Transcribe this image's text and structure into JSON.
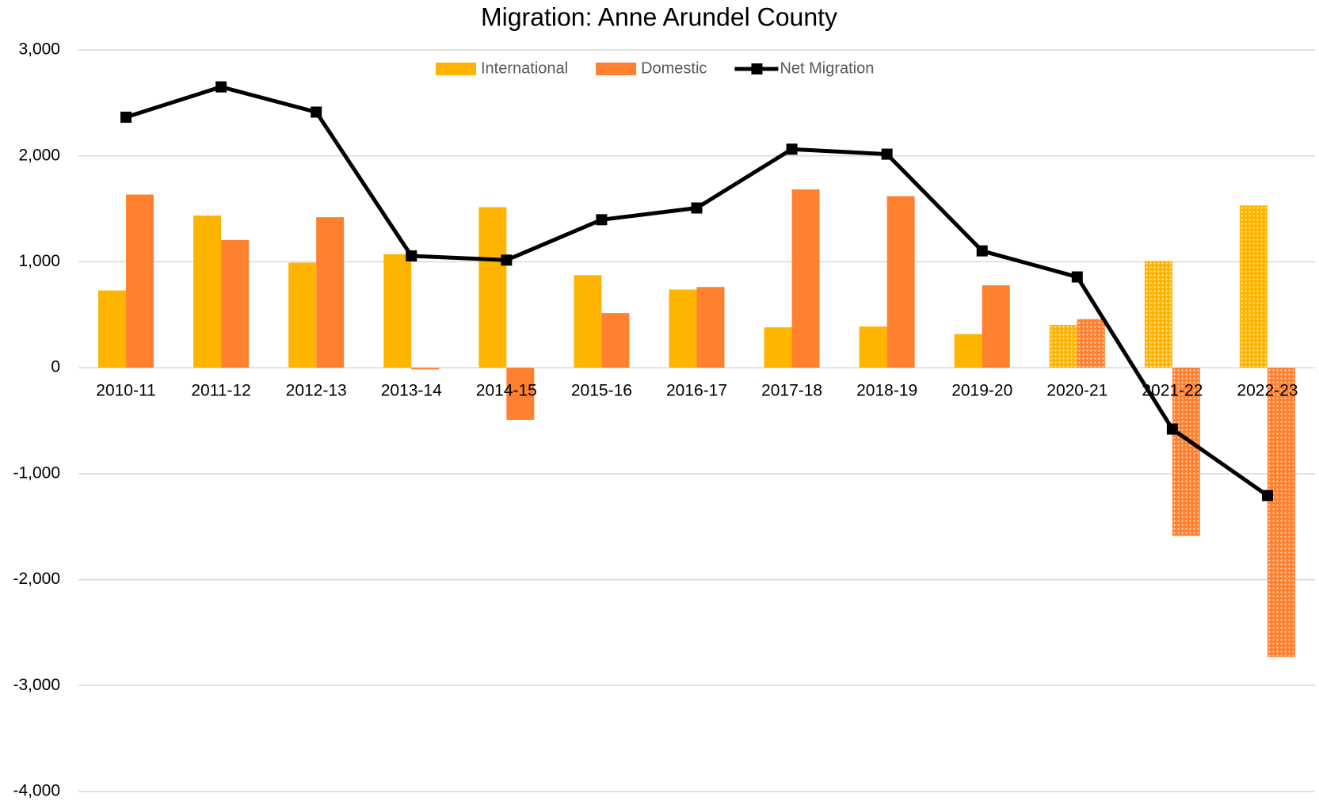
{
  "chart_data": {
    "type": "bar-line",
    "title": "Migration: Anne Arundel County",
    "categories": [
      "2010-11",
      "2011-12",
      "2012-13",
      "2013-14",
      "2014-15",
      "2015-16",
      "2016-17",
      "2017-18",
      "2018-19",
      "2019-20",
      "2020-21",
      "2021-22",
      "2022-23"
    ],
    "dotted": [
      false,
      false,
      false,
      false,
      false,
      false,
      false,
      false,
      false,
      false,
      true,
      true,
      true
    ],
    "series": [
      {
        "name": "International",
        "type": "bar",
        "color": "#ffb400",
        "values": [
          730,
          1437,
          992,
          1071,
          1516,
          873,
          738,
          381,
          389,
          317,
          405,
          1008,
          1532
        ]
      },
      {
        "name": "Domestic",
        "type": "bar",
        "color": "#ff8130",
        "values": [
          1635,
          1206,
          1421,
          -16,
          -492,
          516,
          762,
          1683,
          1619,
          778,
          460,
          -1587,
          -2730
        ]
      },
      {
        "name": "Net Migration",
        "type": "line",
        "color": "#000000",
        "values": [
          2365,
          2651,
          2413,
          1056,
          1016,
          1397,
          1508,
          2063,
          2016,
          1103,
          857,
          -579,
          -1206
        ]
      }
    ],
    "ylim": [
      -4000,
      3000
    ],
    "yticks": [
      {
        "value": -4000,
        "label": "-4,000"
      },
      {
        "value": -3000,
        "label": "-3,000"
      },
      {
        "value": -2000,
        "label": "-2,000"
      },
      {
        "value": -1000,
        "label": "-1,000"
      },
      0,
      {
        "value": 1000,
        "label": "1,000"
      },
      {
        "value": 2000,
        "label": "2,000"
      },
      {
        "value": 3000,
        "label": "3,000"
      }
    ],
    "grid": true,
    "legend": "top"
  }
}
